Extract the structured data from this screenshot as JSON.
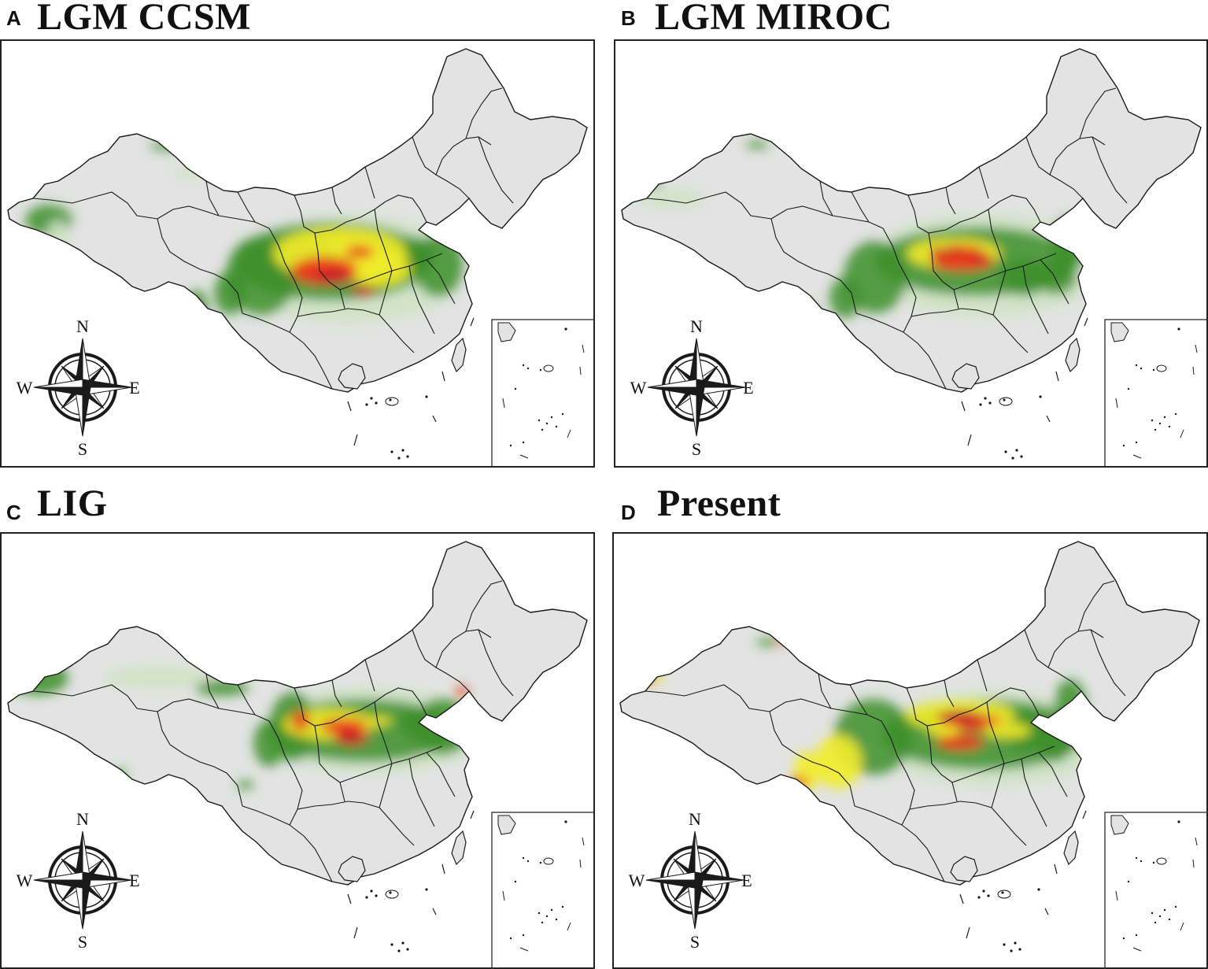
{
  "panels": [
    {
      "letter": "A",
      "title": "LGM CCSM"
    },
    {
      "letter": "B",
      "title": "LGM MIROC"
    },
    {
      "letter": "C",
      "title": "LIG"
    },
    {
      "letter": "D",
      "title": "Present"
    }
  ],
  "compass": {
    "n": "N",
    "s": "S",
    "e": "E",
    "w": "W"
  },
  "colors": {
    "land": "#e2e3e2",
    "border": "#1a1a1a",
    "low": "#cfe3c4",
    "mid": "#3d8f2c",
    "high": "#f2ec2a",
    "peak": "#e8361c",
    "max": "#c8102a"
  }
}
